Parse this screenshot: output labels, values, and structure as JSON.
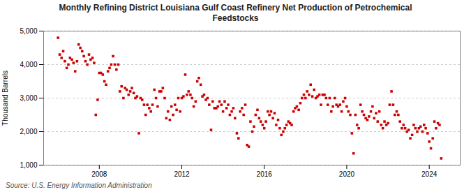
{
  "chart_data": {
    "type": "scatter",
    "title": "Monthly Refining District Louisiana Gulf Coast Refinery Net Production of Petrochemical\nFeedstocks",
    "ylabel": "Thousand Barrels",
    "source": "Source: U.S. Energy Information Administration",
    "color": "#cc0000",
    "marker": "square",
    "grid": true,
    "xlim": [
      2005.3,
      2025.5
    ],
    "xticks": [
      2008,
      2012,
      2016,
      2020,
      2024
    ],
    "ylim": [
      1000,
      5000
    ],
    "yticks": [
      {
        "value": 1000,
        "label": "1,000"
      },
      {
        "value": 2000,
        "label": "2,000"
      },
      {
        "value": 3000,
        "label": "3,000"
      },
      {
        "value": 4000,
        "label": "4,000"
      },
      {
        "value": 5000,
        "label": "5,000"
      }
    ],
    "x": [
      2006.0,
      2006.08,
      2006.17,
      2006.25,
      2006.33,
      2006.42,
      2006.5,
      2006.58,
      2006.67,
      2006.75,
      2006.83,
      2006.92,
      2007.0,
      2007.08,
      2007.17,
      2007.25,
      2007.33,
      2007.42,
      2007.5,
      2007.58,
      2007.67,
      2007.75,
      2007.83,
      2007.92,
      2008.0,
      2008.08,
      2008.17,
      2008.25,
      2008.33,
      2008.42,
      2008.5,
      2008.58,
      2008.67,
      2008.75,
      2008.83,
      2008.92,
      2009.0,
      2009.08,
      2009.17,
      2009.25,
      2009.33,
      2009.42,
      2009.5,
      2009.58,
      2009.67,
      2009.75,
      2009.83,
      2009.92,
      2010.0,
      2010.08,
      2010.17,
      2010.25,
      2010.33,
      2010.42,
      2010.5,
      2010.58,
      2010.67,
      2010.75,
      2010.83,
      2010.92,
      2011.0,
      2011.08,
      2011.17,
      2011.25,
      2011.33,
      2011.42,
      2011.5,
      2011.58,
      2011.67,
      2011.75,
      2011.83,
      2011.92,
      2012.0,
      2012.08,
      2012.17,
      2012.25,
      2012.33,
      2012.42,
      2012.5,
      2012.58,
      2012.67,
      2012.75,
      2012.83,
      2012.92,
      2013.0,
      2013.08,
      2013.17,
      2013.25,
      2013.33,
      2013.42,
      2013.5,
      2013.58,
      2013.67,
      2013.75,
      2013.83,
      2013.92,
      2014.0,
      2014.08,
      2014.17,
      2014.25,
      2014.33,
      2014.42,
      2014.5,
      2014.58,
      2014.67,
      2014.75,
      2014.83,
      2014.92,
      2015.0,
      2015.08,
      2015.17,
      2015.25,
      2015.33,
      2015.42,
      2015.5,
      2015.58,
      2015.67,
      2015.75,
      2015.83,
      2015.92,
      2016.0,
      2016.08,
      2016.17,
      2016.25,
      2016.33,
      2016.42,
      2016.5,
      2016.58,
      2016.67,
      2016.75,
      2016.83,
      2016.92,
      2017.0,
      2017.08,
      2017.17,
      2017.25,
      2017.33,
      2017.42,
      2017.5,
      2017.58,
      2017.67,
      2017.75,
      2017.83,
      2017.92,
      2018.0,
      2018.08,
      2018.17,
      2018.25,
      2018.33,
      2018.42,
      2018.5,
      2018.58,
      2018.67,
      2018.75,
      2018.83,
      2018.92,
      2019.0,
      2019.08,
      2019.17,
      2019.25,
      2019.33,
      2019.42,
      2019.5,
      2019.58,
      2019.67,
      2019.75,
      2019.83,
      2019.92,
      2020.0,
      2020.08,
      2020.17,
      2020.25,
      2020.33,
      2020.42,
      2020.5,
      2020.58,
      2020.67,
      2020.75,
      2020.83,
      2020.92,
      2021.0,
      2021.08,
      2021.17,
      2021.25,
      2021.33,
      2021.42,
      2021.5,
      2021.58,
      2021.67,
      2021.75,
      2021.83,
      2021.92,
      2022.0,
      2022.08,
      2022.17,
      2022.25,
      2022.33,
      2022.42,
      2022.5,
      2022.58,
      2022.67,
      2022.75,
      2022.83,
      2022.92,
      2023.0,
      2023.08,
      2023.17,
      2023.25,
      2023.33,
      2023.42,
      2023.5,
      2023.58,
      2023.67,
      2023.75,
      2023.83,
      2023.92,
      2024.0,
      2024.08,
      2024.17,
      2024.25,
      2024.33,
      2024.42,
      2024.5,
      2024.58
    ],
    "values": [
      4800,
      4300,
      4200,
      4400,
      4100,
      3900,
      4000,
      4200,
      4150,
      4050,
      3800,
      4100,
      4600,
      4500,
      4400,
      4250,
      4100,
      4000,
      4300,
      4150,
      4200,
      4050,
      2500,
      2950,
      3750,
      3750,
      3700,
      3500,
      3400,
      3800,
      3900,
      4000,
      4250,
      4000,
      3850,
      4000,
      3200,
      3350,
      3000,
      3300,
      3250,
      3100,
      3200,
      3300,
      3150,
      3000,
      3050,
      1950,
      3000,
      2950,
      2800,
      2500,
      2800,
      2700,
      2600,
      2800,
      3250,
      3000,
      2750,
      3200,
      3200,
      3300,
      3000,
      2400,
      2600,
      2350,
      2750,
      2500,
      2800,
      2650,
      3000,
      2600,
      3000,
      3050,
      3700,
      3100,
      3200,
      3100,
      3000,
      2750,
      2900,
      3500,
      3600,
      3400,
      3050,
      3100,
      2950,
      3000,
      2800,
      2050,
      2900,
      2700,
      2700,
      2750,
      2900,
      2800,
      2600,
      2900,
      2700,
      2800,
      2500,
      2600,
      2700,
      2400,
      1950,
      1800,
      2600,
      2700,
      2500,
      2800,
      1600,
      1550,
      2300,
      2000,
      2150,
      2500,
      2650,
      2400,
      2300,
      2200,
      2100,
      2300,
      2600,
      2500,
      2600,
      2400,
      2550,
      2200,
      2350,
      2100,
      1900,
      2000,
      2100,
      2200,
      2300,
      2250,
      2200,
      2600,
      2700,
      2750,
      2650,
      2850,
      3000,
      3100,
      3000,
      3200,
      3100,
      3400,
      3050,
      3250,
      3000,
      3050,
      3100,
      2800,
      3100,
      3100,
      3000,
      2800,
      3000,
      2600,
      2750,
      3000,
      2800,
      2750,
      2800,
      2600,
      2900,
      3000,
      2750,
      2600,
      2500,
      1950,
      1350,
      2500,
      2200,
      2100,
      2800,
      2600,
      2500,
      2400,
      2350,
      2450,
      2600,
      2750,
      2400,
      2550,
      2300,
      2600,
      2200,
      2100,
      2300,
      2200,
      2250,
      2800,
      3200,
      2800,
      2500,
      2600,
      2500,
      2300,
      2100,
      2200,
      2100,
      2000,
      2050,
      1800,
      1900,
      2200,
      2100,
      2000,
      2100,
      2150,
      2000,
      2200,
      2100,
      1950,
      1700,
      1500,
      1800,
      2300,
      2100,
      2250,
      2200,
      1200
    ]
  }
}
